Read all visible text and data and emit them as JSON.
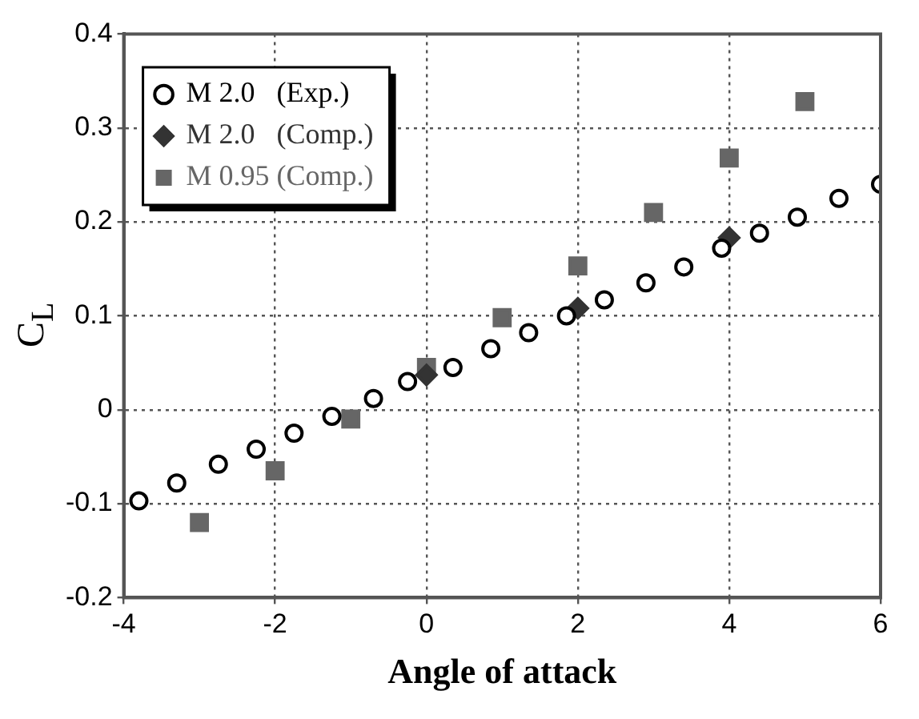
{
  "chart_data": {
    "type": "scatter",
    "xlabel": "Angle of attack",
    "ylabel": "C$_{L}$",
    "xlim": [
      -4,
      6
    ],
    "xticks": [
      -4,
      -2,
      0,
      2,
      4,
      6
    ],
    "ylim": [
      -0.2,
      0.4
    ],
    "yticks": [
      -0.2,
      -0.1,
      0,
      0.1,
      0.2,
      0.3,
      0.4
    ],
    "grid": true,
    "legend": "top left",
    "series": [
      {
        "name": "M 2.0   (Exp.)",
        "color": "#000000",
        "marker": "circle",
        "x": [
          -3.8,
          -3.3,
          -2.75,
          -2.25,
          -1.75,
          -1.25,
          -0.7,
          -0.25,
          0.35,
          0.85,
          1.35,
          1.85,
          2.35,
          2.9,
          3.4,
          3.9,
          4.4,
          4.9,
          5.45,
          6.0
        ],
        "values": [
          -0.097,
          -0.078,
          -0.058,
          -0.042,
          -0.025,
          -0.007,
          0.012,
          0.03,
          0.045,
          0.065,
          0.082,
          0.1,
          0.117,
          0.135,
          0.152,
          0.172,
          0.188,
          0.205,
          0.225,
          0.24
        ]
      },
      {
        "name": "M 2.0   (Comp.)",
        "color": "#333333",
        "marker": "diamond",
        "x": [
          0,
          2,
          4
        ],
        "values": [
          0.037,
          0.108,
          0.183
        ]
      },
      {
        "name": "M 0.95 (Comp.)",
        "color": "#666666",
        "marker": "square",
        "x": [
          -3,
          -2,
          -1,
          0,
          1,
          2,
          3,
          4,
          5
        ],
        "values": [
          -0.12,
          -0.065,
          -0.01,
          0.045,
          0.098,
          0.153,
          0.21,
          0.268,
          0.328
        ]
      }
    ]
  }
}
